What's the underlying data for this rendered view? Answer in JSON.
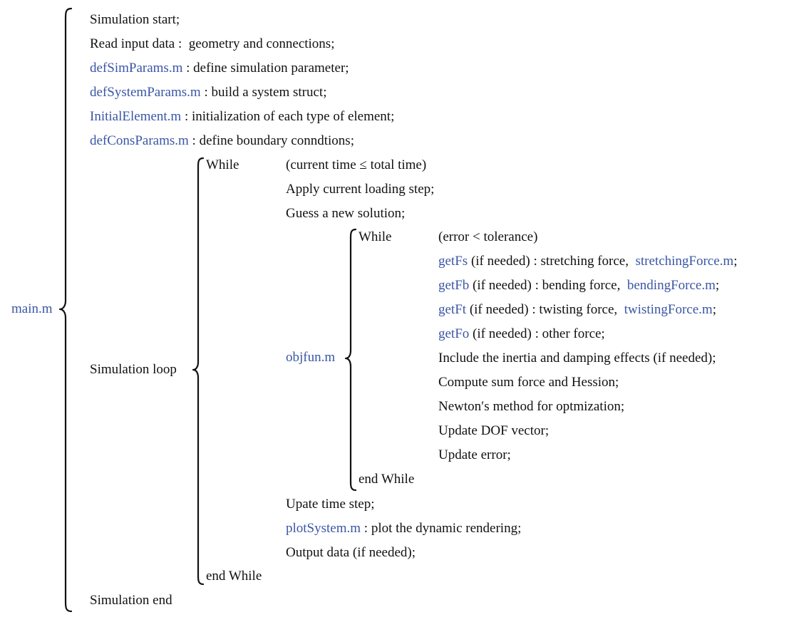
{
  "diagram": {
    "root": {
      "label": "main.m"
    },
    "main_lines": {
      "sim_start": {
        "text": "Simulation start;"
      },
      "read_input": {
        "text": "Read input data :  geometry and connections;"
      },
      "def_sim_params": {
        "file": "defSimParams.m",
        "text": " : define simulation parameter;"
      },
      "def_system_params": {
        "file": "defSystemParams.m",
        "text": " : build a system struct;"
      },
      "initial_element": {
        "file": "InitialElement.m",
        "text": " : initialization of each type of element;"
      },
      "def_cons_params": {
        "file": "defConsParams.m",
        "text": " : define boundary conndtions;"
      },
      "sim_loop": {
        "label": "Simulation loop"
      },
      "sim_end": {
        "text": "Simulation end"
      }
    },
    "outer_loop": {
      "while_keyword": "While",
      "condition": "(current time ≤ total time)",
      "apply_loading": "Apply current loading step;",
      "guess_solution": "Guess a new solution;",
      "objfun": "objfun.m",
      "update_time": "Upate time step;",
      "plot_system": {
        "file": "plotSystem.m",
        "text": " : plot the dynamic rendering;"
      },
      "output_data": "Output data (if needed);",
      "end_while": "end While"
    },
    "inner_loop": {
      "while_keyword": "While",
      "condition": "(error < tolerance)",
      "get_fs": {
        "func": "getFs",
        "text": " (if needed) : stretching force,  ",
        "file": "stretchingForce.m",
        "tail": ";"
      },
      "get_fb": {
        "func": "getFb",
        "text": " (if needed) : bending force,  ",
        "file": "bendingForce.m",
        "tail": ";"
      },
      "get_ft": {
        "func": "getFt",
        "text": " (if needed) : twisting force,  ",
        "file": "twistingForce.m",
        "tail": ";"
      },
      "get_fo": {
        "func": "getFo",
        "text": " (if needed) : other force;"
      },
      "inertia": "Include the inertia and damping effects (if needed);",
      "sum_force": "Compute sum force and Hession;",
      "newton": "Newton′s method for optmization;",
      "update_dof": "Update DOF vector;",
      "update_error": "Update error;",
      "end_while": "end While"
    },
    "colors": {
      "link": "#3a56a6",
      "text": "#111111"
    }
  }
}
